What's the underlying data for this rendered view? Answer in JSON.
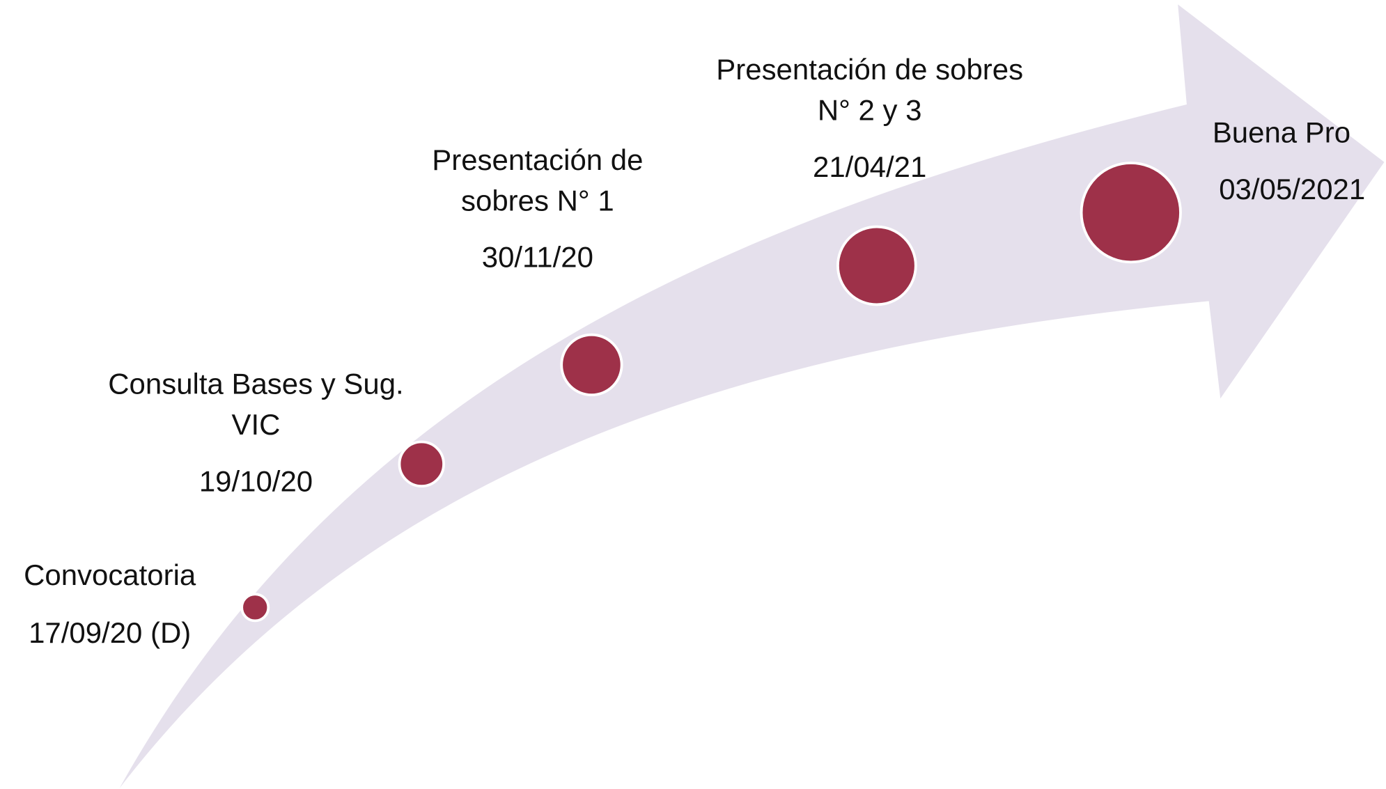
{
  "milestones": [
    {
      "label": [
        "Convocatoria"
      ],
      "date": "17/09/20 (D)"
    },
    {
      "label": [
        "Consulta Bases y Sug.",
        "VIC"
      ],
      "date": "19/10/20"
    },
    {
      "label": [
        "Presentación de",
        "sobres N° 1"
      ],
      "date": "30/11/20"
    },
    {
      "label": [
        "Presentación de sobres",
        "N° 2 y 3"
      ],
      "date": "21/04/21"
    },
    {
      "label": [
        "Buena Pro"
      ],
      "date": "03/05/2021"
    }
  ]
}
